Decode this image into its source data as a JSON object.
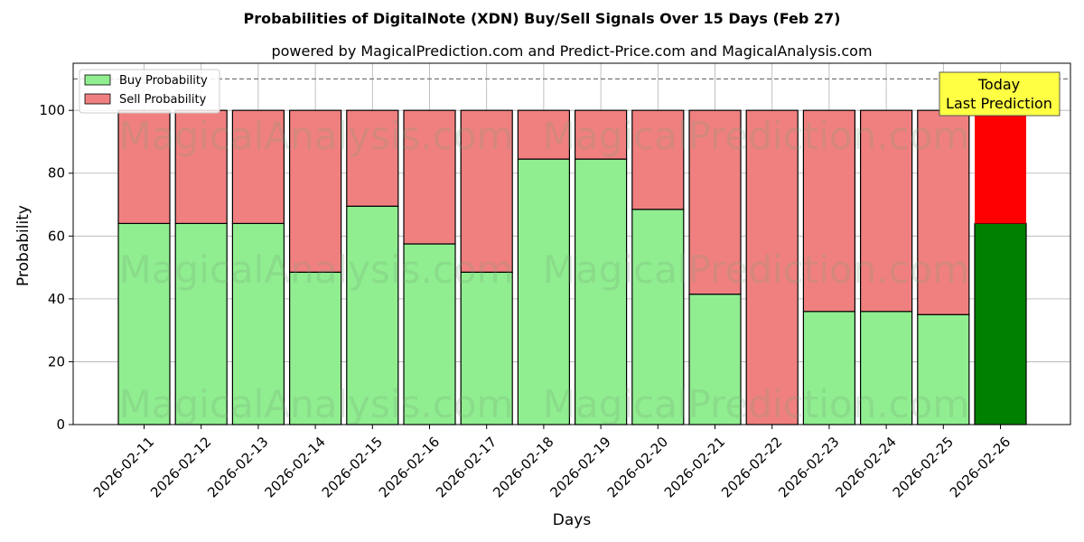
{
  "chart_data": {
    "type": "bar",
    "stacked": true,
    "title": "Probabilities of DigitalNote (XDN) Buy/Sell Signals Over 15 Days (Feb 27)",
    "subtitle": "powered by MagicalPrediction.com and Predict-Price.com and MagicalAnalysis.com",
    "xlabel": "Days",
    "ylabel": "Probability",
    "ylim": [
      0,
      115
    ],
    "yticks": [
      0,
      20,
      40,
      60,
      80,
      100
    ],
    "reference_line": 110,
    "grid": true,
    "legend_position": "top-left",
    "categories": [
      "2026-02-11",
      "2026-02-12",
      "2026-02-13",
      "2026-02-14",
      "2026-02-15",
      "2026-02-16",
      "2026-02-17",
      "2026-02-18",
      "2026-02-19",
      "2026-02-20",
      "2026-02-21",
      "2026-02-22",
      "2026-02-23",
      "2026-02-24",
      "2026-02-25",
      "2026-02-26"
    ],
    "series": [
      {
        "name": "Buy Probability",
        "values": [
          64,
          64,
          64,
          48.5,
          69.5,
          57.5,
          48.5,
          84.5,
          84.5,
          68.5,
          41.5,
          0,
          36,
          36,
          35,
          64
        ],
        "color": "#90ee90",
        "highlight_color": "#008000"
      },
      {
        "name": "Sell Probability",
        "values": [
          36,
          36,
          36,
          51.5,
          30.5,
          42.5,
          51.5,
          15.5,
          15.5,
          31.5,
          58.5,
          100,
          64,
          64,
          65,
          36
        ],
        "color": "#f08080",
        "highlight_color": "#ff0000"
      }
    ],
    "highlight_index": 15,
    "annotation": {
      "line1": "Today",
      "line2": "Last Prediction",
      "color": "#ffff44"
    }
  },
  "watermarks": [
    "MagicalAnalysis.com",
    "MagicalPrediction.com"
  ]
}
